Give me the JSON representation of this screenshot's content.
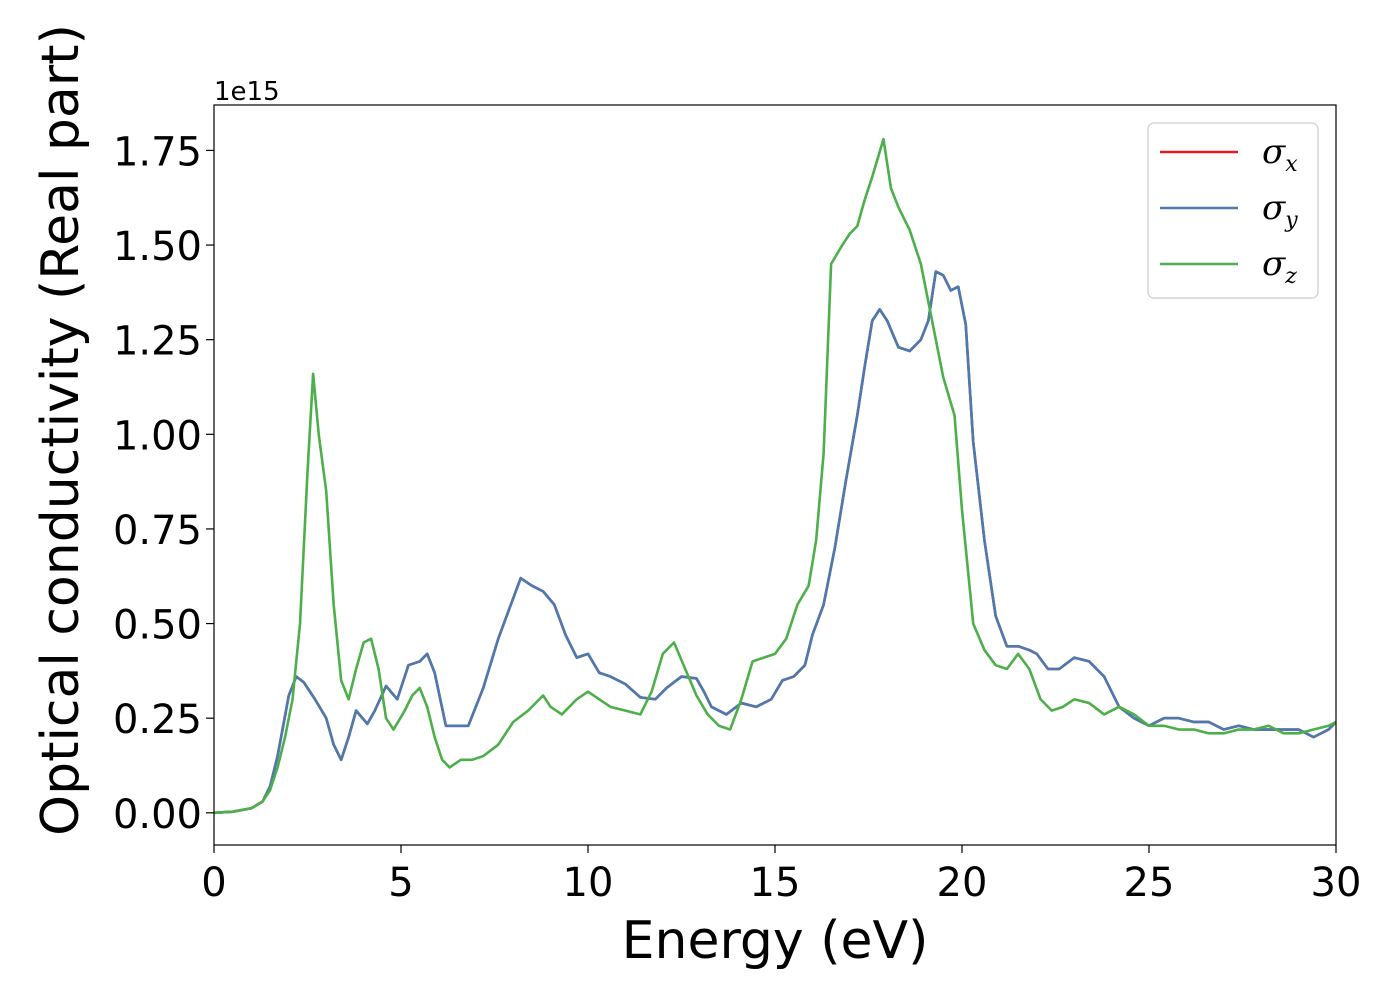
{
  "chart_data": {
    "type": "line",
    "title": "",
    "xlabel": "Energy (eV)",
    "ylabel": "Optical conductivity (Real part)",
    "y_offset_label": "1e15",
    "xlim": [
      0,
      30
    ],
    "ylim": [
      -0.085,
      1.87
    ],
    "x_ticks": [
      0,
      5,
      10,
      15,
      20,
      25,
      30
    ],
    "x_tick_labels": [
      "0",
      "5",
      "10",
      "15",
      "20",
      "25",
      "30"
    ],
    "y_ticks": [
      0.0,
      0.25,
      0.5,
      0.75,
      1.0,
      1.25,
      1.5,
      1.75
    ],
    "y_tick_labels": [
      "0.00",
      "0.25",
      "0.50",
      "0.75",
      "1.00",
      "1.25",
      "1.50",
      "1.75"
    ],
    "grid": false,
    "legend_position": "top-right",
    "series": [
      {
        "name": "σx",
        "symbol": "σ",
        "subscript": "x",
        "color": "#e41a1c",
        "x": [
          0,
          0.5,
          1,
          1.3,
          1.5,
          1.7,
          2,
          2.2,
          2.4,
          2.7,
          3,
          3.2,
          3.4,
          3.6,
          3.8,
          4.1,
          4.3,
          4.6,
          4.9,
          5.2,
          5.5,
          5.7,
          5.9,
          6.2,
          6.5,
          6.8,
          7.2,
          7.6,
          7.9,
          8.2,
          8.5,
          8.8,
          9.1,
          9.4,
          9.7,
          10,
          10.3,
          10.6,
          11,
          11.4,
          11.8,
          12.1,
          12.5,
          12.9,
          13.1,
          13.3,
          13.7,
          14.1,
          14.5,
          14.9,
          15.2,
          15.5,
          15.8,
          16,
          16.3,
          16.6,
          16.9,
          17.2,
          17.4,
          17.6,
          17.8,
          18,
          18.3,
          18.6,
          18.9,
          19.1,
          19.3,
          19.5,
          19.7,
          19.9,
          20.1,
          20.3,
          20.6,
          20.9,
          21.2,
          21.5,
          21.8,
          22,
          22.3,
          22.6,
          23,
          23.4,
          23.8,
          24.2,
          24.6,
          25,
          25.4,
          25.8,
          26.2,
          26.6,
          27,
          27.4,
          27.8,
          28.2,
          28.6,
          29,
          29.4,
          29.8,
          30
        ],
        "y": [
          0,
          0.003,
          0.012,
          0.03,
          0.07,
          0.15,
          0.31,
          0.36,
          0.345,
          0.3,
          0.25,
          0.18,
          0.14,
          0.2,
          0.27,
          0.235,
          0.27,
          0.335,
          0.3,
          0.39,
          0.4,
          0.42,
          0.37,
          0.23,
          0.23,
          0.23,
          0.33,
          0.46,
          0.54,
          0.62,
          0.6,
          0.585,
          0.55,
          0.47,
          0.41,
          0.42,
          0.37,
          0.36,
          0.34,
          0.305,
          0.3,
          0.33,
          0.36,
          0.355,
          0.32,
          0.28,
          0.26,
          0.29,
          0.28,
          0.3,
          0.35,
          0.36,
          0.39,
          0.47,
          0.55,
          0.7,
          0.88,
          1.05,
          1.18,
          1.3,
          1.33,
          1.3,
          1.23,
          1.22,
          1.25,
          1.3,
          1.43,
          1.42,
          1.38,
          1.39,
          1.29,
          0.98,
          0.72,
          0.52,
          0.44,
          0.44,
          0.43,
          0.42,
          0.38,
          0.38,
          0.41,
          0.4,
          0.36,
          0.28,
          0.25,
          0.23,
          0.25,
          0.25,
          0.24,
          0.24,
          0.22,
          0.23,
          0.22,
          0.22,
          0.22,
          0.22,
          0.2,
          0.22,
          0.24
        ]
      },
      {
        "name": "σy",
        "symbol": "σ",
        "subscript": "y",
        "color": "#4a7bb0",
        "x": [
          0,
          0.5,
          1,
          1.3,
          1.5,
          1.7,
          2,
          2.2,
          2.4,
          2.7,
          3,
          3.2,
          3.4,
          3.6,
          3.8,
          4.1,
          4.3,
          4.6,
          4.9,
          5.2,
          5.5,
          5.7,
          5.9,
          6.2,
          6.5,
          6.8,
          7.2,
          7.6,
          7.9,
          8.2,
          8.5,
          8.8,
          9.1,
          9.4,
          9.7,
          10,
          10.3,
          10.6,
          11,
          11.4,
          11.8,
          12.1,
          12.5,
          12.9,
          13.1,
          13.3,
          13.7,
          14.1,
          14.5,
          14.9,
          15.2,
          15.5,
          15.8,
          16,
          16.3,
          16.6,
          16.9,
          17.2,
          17.4,
          17.6,
          17.8,
          18,
          18.3,
          18.6,
          18.9,
          19.1,
          19.3,
          19.5,
          19.7,
          19.9,
          20.1,
          20.3,
          20.6,
          20.9,
          21.2,
          21.5,
          21.8,
          22,
          22.3,
          22.6,
          23,
          23.4,
          23.8,
          24.2,
          24.6,
          25,
          25.4,
          25.8,
          26.2,
          26.6,
          27,
          27.4,
          27.8,
          28.2,
          28.6,
          29,
          29.4,
          29.8,
          30
        ],
        "y": [
          0,
          0.003,
          0.012,
          0.03,
          0.07,
          0.15,
          0.31,
          0.36,
          0.345,
          0.3,
          0.25,
          0.18,
          0.14,
          0.2,
          0.27,
          0.235,
          0.27,
          0.335,
          0.3,
          0.39,
          0.4,
          0.42,
          0.37,
          0.23,
          0.23,
          0.23,
          0.33,
          0.46,
          0.54,
          0.62,
          0.6,
          0.585,
          0.55,
          0.47,
          0.41,
          0.42,
          0.37,
          0.36,
          0.34,
          0.305,
          0.3,
          0.33,
          0.36,
          0.355,
          0.32,
          0.28,
          0.26,
          0.29,
          0.28,
          0.3,
          0.35,
          0.36,
          0.39,
          0.47,
          0.55,
          0.7,
          0.88,
          1.05,
          1.18,
          1.3,
          1.33,
          1.3,
          1.23,
          1.22,
          1.25,
          1.3,
          1.43,
          1.42,
          1.38,
          1.39,
          1.29,
          0.98,
          0.72,
          0.52,
          0.44,
          0.44,
          0.43,
          0.42,
          0.38,
          0.38,
          0.41,
          0.4,
          0.36,
          0.28,
          0.25,
          0.23,
          0.25,
          0.25,
          0.24,
          0.24,
          0.22,
          0.23,
          0.22,
          0.22,
          0.22,
          0.22,
          0.2,
          0.22,
          0.24
        ]
      },
      {
        "name": "σz",
        "symbol": "σ",
        "subscript": "z",
        "color": "#4daf4a",
        "x": [
          0,
          0.5,
          1,
          1.3,
          1.5,
          1.7,
          1.9,
          2.1,
          2.3,
          2.5,
          2.65,
          2.8,
          3,
          3.2,
          3.4,
          3.6,
          3.8,
          4,
          4.2,
          4.4,
          4.6,
          4.8,
          5.1,
          5.3,
          5.5,
          5.7,
          5.9,
          6.1,
          6.3,
          6.6,
          6.9,
          7.2,
          7.6,
          8,
          8.4,
          8.8,
          9,
          9.3,
          9.7,
          10,
          10.3,
          10.6,
          11,
          11.4,
          11.7,
          12,
          12.3,
          12.6,
          12.9,
          13.2,
          13.5,
          13.8,
          14.1,
          14.4,
          14.7,
          15,
          15.3,
          15.6,
          15.9,
          16.1,
          16.3,
          16.5,
          16.8,
          17,
          17.2,
          17.4,
          17.6,
          17.9,
          18.1,
          18.3,
          18.6,
          18.9,
          19.2,
          19.5,
          19.8,
          20,
          20.3,
          20.6,
          20.9,
          21.2,
          21.5,
          21.8,
          22.1,
          22.4,
          22.7,
          23,
          23.4,
          23.8,
          24.2,
          24.6,
          25,
          25.4,
          25.8,
          26.2,
          26.6,
          27,
          27.4,
          27.8,
          28.2,
          28.6,
          29,
          29.4,
          29.8,
          30
        ],
        "y": [
          0,
          0.003,
          0.012,
          0.03,
          0.06,
          0.12,
          0.2,
          0.3,
          0.5,
          0.9,
          1.16,
          1.0,
          0.85,
          0.55,
          0.35,
          0.3,
          0.38,
          0.45,
          0.46,
          0.38,
          0.25,
          0.22,
          0.27,
          0.31,
          0.33,
          0.28,
          0.2,
          0.14,
          0.12,
          0.14,
          0.14,
          0.15,
          0.18,
          0.24,
          0.27,
          0.31,
          0.28,
          0.26,
          0.3,
          0.32,
          0.3,
          0.28,
          0.27,
          0.26,
          0.32,
          0.42,
          0.45,
          0.38,
          0.31,
          0.26,
          0.23,
          0.22,
          0.3,
          0.4,
          0.41,
          0.42,
          0.46,
          0.55,
          0.6,
          0.72,
          0.95,
          1.45,
          1.5,
          1.53,
          1.55,
          1.62,
          1.68,
          1.78,
          1.65,
          1.6,
          1.54,
          1.45,
          1.3,
          1.15,
          1.05,
          0.8,
          0.5,
          0.43,
          0.39,
          0.38,
          0.42,
          0.38,
          0.3,
          0.27,
          0.28,
          0.3,
          0.29,
          0.26,
          0.28,
          0.26,
          0.23,
          0.23,
          0.22,
          0.22,
          0.21,
          0.21,
          0.22,
          0.22,
          0.23,
          0.21,
          0.21,
          0.22,
          0.23,
          0.24
        ]
      }
    ]
  }
}
